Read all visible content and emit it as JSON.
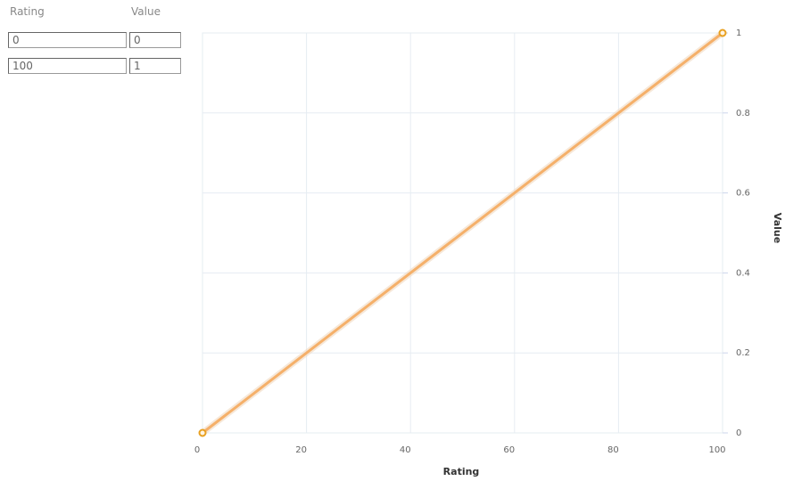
{
  "table": {
    "headers": {
      "rating": "Rating",
      "value": "Value"
    },
    "rows": [
      {
        "rating": "0",
        "value": "0"
      },
      {
        "rating": "100",
        "value": "1"
      }
    ]
  },
  "colors": {
    "line": "#f5b06a",
    "point": "#e8a020",
    "grid": "#e6ecf2"
  },
  "chart_data": {
    "type": "line",
    "xlabel": "Rating",
    "ylabel": "Value",
    "xlim": [
      0,
      100
    ],
    "ylim": [
      0,
      1
    ],
    "x_ticks": [
      {
        "value": 0,
        "label": "0"
      },
      {
        "value": 20,
        "label": "20"
      },
      {
        "value": 40,
        "label": "40"
      },
      {
        "value": 60,
        "label": "60"
      },
      {
        "value": 80,
        "label": "80"
      },
      {
        "value": 100,
        "label": "100"
      }
    ],
    "y_ticks": [
      {
        "value": 0,
        "label": "0"
      },
      {
        "value": 0.2,
        "label": "0.2"
      },
      {
        "value": 0.4,
        "label": "0.4"
      },
      {
        "value": 0.6,
        "label": "0.6"
      },
      {
        "value": 0.8,
        "label": "0.8"
      },
      {
        "value": 1,
        "label": "1"
      }
    ],
    "grid": true,
    "y_axis_side": "right",
    "series": [
      {
        "x": [
          0,
          100
        ],
        "y": [
          0,
          1
        ]
      }
    ]
  }
}
